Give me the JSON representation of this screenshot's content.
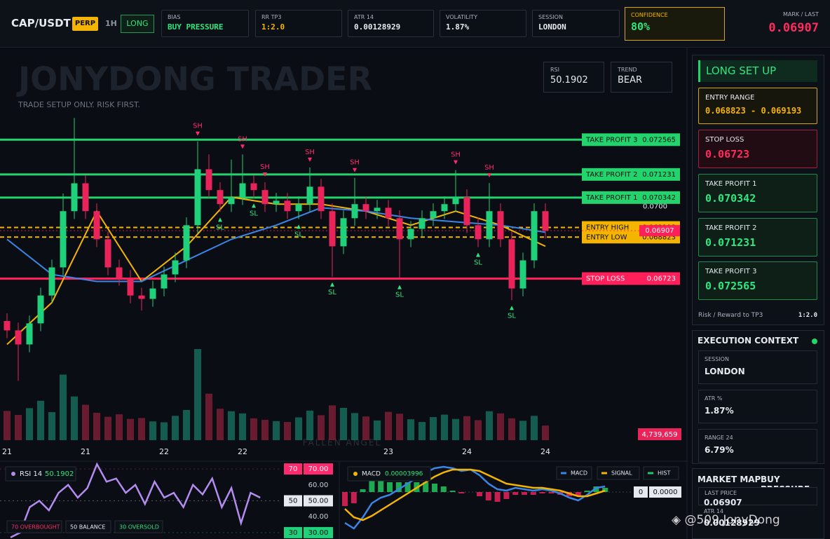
{
  "header": {
    "symbol": "CAP/USDT",
    "contract": "PERP",
    "timeframe": "1H",
    "direction": "LONG",
    "stats": [
      {
        "label": "BIAS",
        "value": "BUY PRESSURE"
      },
      {
        "label": "RR TP3",
        "value": "1:2.0"
      },
      {
        "label": "ATR 14",
        "value": "0.00128929"
      },
      {
        "label": "VOLATILITY",
        "value": "1.87%"
      },
      {
        "label": "SESSION",
        "value": "LONDON"
      }
    ],
    "confidence": {
      "label": "CONFIDENCE",
      "value": "80%"
    },
    "mark_label": "MARK / LAST"
  },
  "overlay": {
    "watermark": "JONYDONG TRADER",
    "tagline": "TRADE SETUP ONLY. RISK FIRST.",
    "trend": {
      "label": "TREND",
      "value": "BEAR"
    },
    "footer_mark": "FALLEN ANGEL",
    "credit": "@509 JonyDong"
  },
  "chart_data": [
    {
      "type": "candlestick",
      "ylim": [
        0.0607,
        0.0761
      ],
      "yticks": [
        {
          "value": 0.07,
          "label": "0.0700"
        }
      ],
      "xticks": [
        {
          "value": 0,
          "label": "21"
        },
        {
          "value": 7,
          "label": "21"
        },
        {
          "value": 14,
          "label": "22"
        },
        {
          "value": 21,
          "label": "22"
        },
        {
          "value": 34,
          "label": "23"
        },
        {
          "value": 41,
          "label": "24"
        },
        {
          "value": 48,
          "label": "24"
        }
      ],
      "open": [
        0.0656,
        0.06524,
        0.0647,
        0.06551,
        0.06658,
        0.06766,
        0.06982,
        0.07089,
        0.06982,
        0.06874,
        0.06766,
        0.06726,
        0.06658,
        0.06645,
        0.06685,
        0.06739,
        0.06793,
        0.06928,
        0.07143,
        0.07063,
        0.07009,
        0.07036,
        0.07089,
        0.07063,
        0.07009,
        0.07022,
        0.06982,
        0.07009,
        0.07076,
        0.06982,
        0.06847,
        0.06955,
        0.07009,
        0.06982,
        0.06995,
        0.06955,
        0.06874,
        0.06914,
        0.06955,
        0.06982,
        0.07009,
        0.07036,
        0.06928,
        0.06874,
        0.06982,
        0.06874,
        0.06685,
        0.06793,
        0.06982
      ],
      "high": [
        0.0659,
        0.06554,
        0.06581,
        0.06688,
        0.06796,
        0.0705,
        0.0734,
        0.07119,
        0.07012,
        0.06904,
        0.06796,
        0.06756,
        0.06688,
        0.06715,
        0.06769,
        0.06823,
        0.06958,
        0.0725,
        0.072,
        0.07093,
        0.0718,
        0.072,
        0.07119,
        0.07093,
        0.07052,
        0.07052,
        0.07039,
        0.0715,
        0.07106,
        0.07012,
        0.06985,
        0.0711,
        0.07039,
        0.07025,
        0.07025,
        0.06985,
        0.06944,
        0.06985,
        0.07012,
        0.07039,
        0.0714,
        0.07066,
        0.06958,
        0.0709,
        0.07012,
        0.06904,
        0.06823,
        0.07012,
        0.07012
      ],
      "low": [
        0.06494,
        0.0633,
        0.0644,
        0.06521,
        0.06628,
        0.06736,
        0.06952,
        0.06952,
        0.06844,
        0.06736,
        0.06696,
        0.06628,
        0.066,
        0.06615,
        0.06655,
        0.06709,
        0.06763,
        0.06898,
        0.07033,
        0.06979,
        0.06979,
        0.07006,
        0.07033,
        0.06979,
        0.06979,
        0.06952,
        0.06952,
        0.06979,
        0.06952,
        0.0673,
        0.06817,
        0.06925,
        0.06952,
        0.06952,
        0.06925,
        0.0672,
        0.06844,
        0.06884,
        0.06925,
        0.06952,
        0.06979,
        0.06898,
        0.06844,
        0.06844,
        0.06844,
        0.0664,
        0.06655,
        0.06763,
        0.06877
      ],
      "close": [
        0.06524,
        0.0647,
        0.06551,
        0.06658,
        0.06766,
        0.06982,
        0.07089,
        0.06982,
        0.06874,
        0.06766,
        0.06726,
        0.06658,
        0.06645,
        0.06685,
        0.06739,
        0.06793,
        0.06928,
        0.07143,
        0.07063,
        0.07009,
        0.07036,
        0.07089,
        0.07063,
        0.07009,
        0.07022,
        0.06982,
        0.07009,
        0.07076,
        0.06982,
        0.06847,
        0.06955,
        0.07009,
        0.06982,
        0.06995,
        0.06955,
        0.06874,
        0.06914,
        0.06955,
        0.06982,
        0.07009,
        0.07036,
        0.06928,
        0.06874,
        0.06982,
        0.06874,
        0.06685,
        0.06793,
        0.06982,
        0.06907
      ],
      "volume": [
        9500000,
        8200000,
        10400000,
        12800000,
        9100000,
        21300000,
        14200000,
        11500000,
        8900000,
        7600000,
        8400000,
        6900000,
        7200000,
        6100000,
        5800000,
        7900000,
        9800000,
        29600000,
        15100000,
        10200000,
        9400000,
        8700000,
        7100000,
        6600000,
        6200000,
        5900000,
        7400000,
        9600000,
        8100000,
        11300000,
        10500000,
        8800000,
        7700000,
        6400000,
        9200000,
        8600000,
        6800000,
        5900000,
        7500000,
        8300000,
        6900000,
        7800000,
        6500000,
        9400000,
        8700000,
        7100000,
        6300000,
        7900000,
        4739659
      ],
      "volume_value_labels": [
        null,
        null,
        null,
        null,
        null,
        null,
        null,
        null,
        null,
        null,
        null,
        null,
        null,
        null,
        null,
        null,
        null,
        null,
        null,
        null,
        null,
        null,
        null,
        null,
        null,
        null,
        null,
        null,
        null,
        null,
        null,
        null,
        null,
        null,
        null,
        null,
        null,
        null,
        null,
        null,
        null,
        null,
        null,
        null,
        null,
        null,
        null,
        null,
        "4,739,659"
      ],
      "up_color": "#1ed17a",
      "down_color": "#e8245a",
      "lines": [
        {
          "color": "#f4b400",
          "x": [
            0,
            4,
            8,
            12,
            16,
            20,
            24,
            28,
            32,
            36,
            40,
            44,
            48
          ],
          "values": [
            0.0647,
            0.06631,
            0.06982,
            0.06712,
            0.06847,
            0.07036,
            0.07009,
            0.07009,
            0.06982,
            0.06928,
            0.06982,
            0.06928,
            0.06847
          ]
        },
        {
          "color": "#3a86e8",
          "x": [
            0,
            4,
            8,
            12,
            16,
            20,
            24,
            28,
            32,
            36,
            40,
            44,
            48
          ],
          "values": [
            0.06874,
            0.06739,
            0.06712,
            0.06712,
            0.06793,
            0.06874,
            0.06928,
            0.06995,
            0.06982,
            0.06955,
            0.06941,
            0.06928,
            0.06901
          ]
        }
      ],
      "levels": [
        {
          "label": "TAKE PROFIT 3",
          "value": 0.072565,
          "color": "#22d46b",
          "style": "solid"
        },
        {
          "label": "TAKE PROFIT 2",
          "value": 0.071231,
          "color": "#22d46b",
          "style": "solid"
        },
        {
          "label": "TAKE PROFIT 1",
          "value": 0.070342,
          "color": "#22d46b",
          "style": "solid"
        },
        {
          "label": "ENTRY HIGH",
          "value": 0.069193,
          "color": "#f4b400",
          "style": "dashed"
        },
        {
          "label": "ENTRY LOW",
          "value": 0.068823,
          "color": "#f4b400",
          "style": "dashed"
        },
        {
          "label": "STOP LOSS",
          "value": 0.06723,
          "color": "#ff1f5a",
          "style": "solid"
        }
      ],
      "last_price": {
        "value": 0.06907,
        "color": "#ff1f5a"
      },
      "markers": [
        {
          "label": "SH",
          "x": 17
        },
        {
          "label": "SH",
          "x": 21
        },
        {
          "label": "SH",
          "x": 23
        },
        {
          "label": "SH",
          "x": 27
        },
        {
          "label": "SH",
          "x": 31
        },
        {
          "label": "SH",
          "x": 40
        },
        {
          "label": "SH",
          "x": 43
        },
        {
          "label": "SL",
          "x": 19
        },
        {
          "label": "SL",
          "x": 22
        },
        {
          "label": "SL",
          "x": 26
        },
        {
          "label": "SL",
          "x": 29
        },
        {
          "label": "SL",
          "x": 35
        },
        {
          "label": "SL",
          "x": 42
        },
        {
          "label": "SL",
          "x": 45
        }
      ]
    },
    {
      "type": "line",
      "title": "RSI 14",
      "last_value": 50.1902,
      "color": "#b48cf0",
      "ylim": [
        26,
        74
      ],
      "yticks": [
        {
          "value": 70,
          "label": "70.00"
        },
        {
          "value": 60,
          "label": "60.00"
        },
        {
          "value": 50,
          "label": "50.00"
        },
        {
          "value": 40,
          "label": "40.00"
        },
        {
          "value": 30,
          "label": "30.00"
        }
      ],
      "values": [
        27,
        30,
        46,
        50,
        44,
        55,
        60,
        52,
        58,
        73,
        62,
        64,
        55,
        60,
        48,
        62,
        52,
        55,
        46,
        60,
        54,
        64,
        46,
        58,
        36,
        55,
        52
      ],
      "legend": [
        "70 OVERBOUGHT",
        "50 BALANCE",
        "30 OVERSOLD"
      ]
    },
    {
      "type": "macd",
      "title": "MACD",
      "last_value": 3.996e-05,
      "ylim": [
        -0.00033,
        0.0002
      ],
      "yticks": [
        {
          "value": 0,
          "label": "0.0000"
        }
      ],
      "series": [
        {
          "name": "MACD",
          "color": "#3a86e8",
          "values": [
            -0.00022,
            -0.00026,
            -0.00018,
            -8e-05,
            -4e-05,
            -2e-05,
            2e-05,
            6e-05,
            0.0001,
            0.00014,
            0.00017,
            0.00018,
            0.00017,
            0.00015,
            0.00016,
            0.00012,
            6e-05,
            2e-05,
            1e-05,
            3e-05,
            2e-05,
            1e-05,
            2e-05,
            1e-05,
            -1e-05,
            -4e-05,
            -6e-05,
            -2e-05,
            3e-05,
            4e-05
          ]
        },
        {
          "name": "SIGNAL",
          "color": "#f4b400",
          "values": [
            -0.00012,
            -0.00018,
            -0.0002,
            -0.00017,
            -0.00013,
            -9e-05,
            -5e-05,
            -1e-05,
            3e-05,
            7e-05,
            0.00011,
            0.00014,
            0.00016,
            0.00016,
            0.00016,
            0.00015,
            0.00012,
            9e-05,
            6e-05,
            5e-05,
            4e-05,
            3e-05,
            3e-05,
            2e-05,
            1e-05,
            -1e-05,
            -3e-05,
            -3e-05,
            -1e-05,
            1e-05
          ]
        },
        {
          "name": "HIST",
          "color": "#22c55e",
          "values": [
            -0.0001,
            -8e-05,
            2e-05,
            9e-05,
            9e-05,
            7e-05,
            7e-05,
            7e-05,
            7e-05,
            7e-05,
            6e-05,
            4e-05,
            1e-05,
            -1e-05,
            0,
            -3e-05,
            -6e-05,
            -7e-05,
            -5e-05,
            -2e-05,
            -2e-05,
            -2e-05,
            -1e-05,
            -1e-05,
            -2e-05,
            -3e-05,
            -3e-05,
            1e-05,
            4e-05,
            3e-05
          ]
        }
      ]
    }
  ],
  "sidebar": {
    "title": "LONG SET UP",
    "entry_label": "ENTRY RANGE",
    "entry_range": "0.068823 - 0.069193",
    "rr_label": "Risk / Reward to TP3",
    "context_title": "EXECUTION CONTEXT",
    "atr_pct_label": "ATR %",
    "range_label": "RANGE 24",
    "range_value": "6.79%",
    "map_title": "MARKET MAP",
    "last_price_label": "LAST PRICE"
  }
}
